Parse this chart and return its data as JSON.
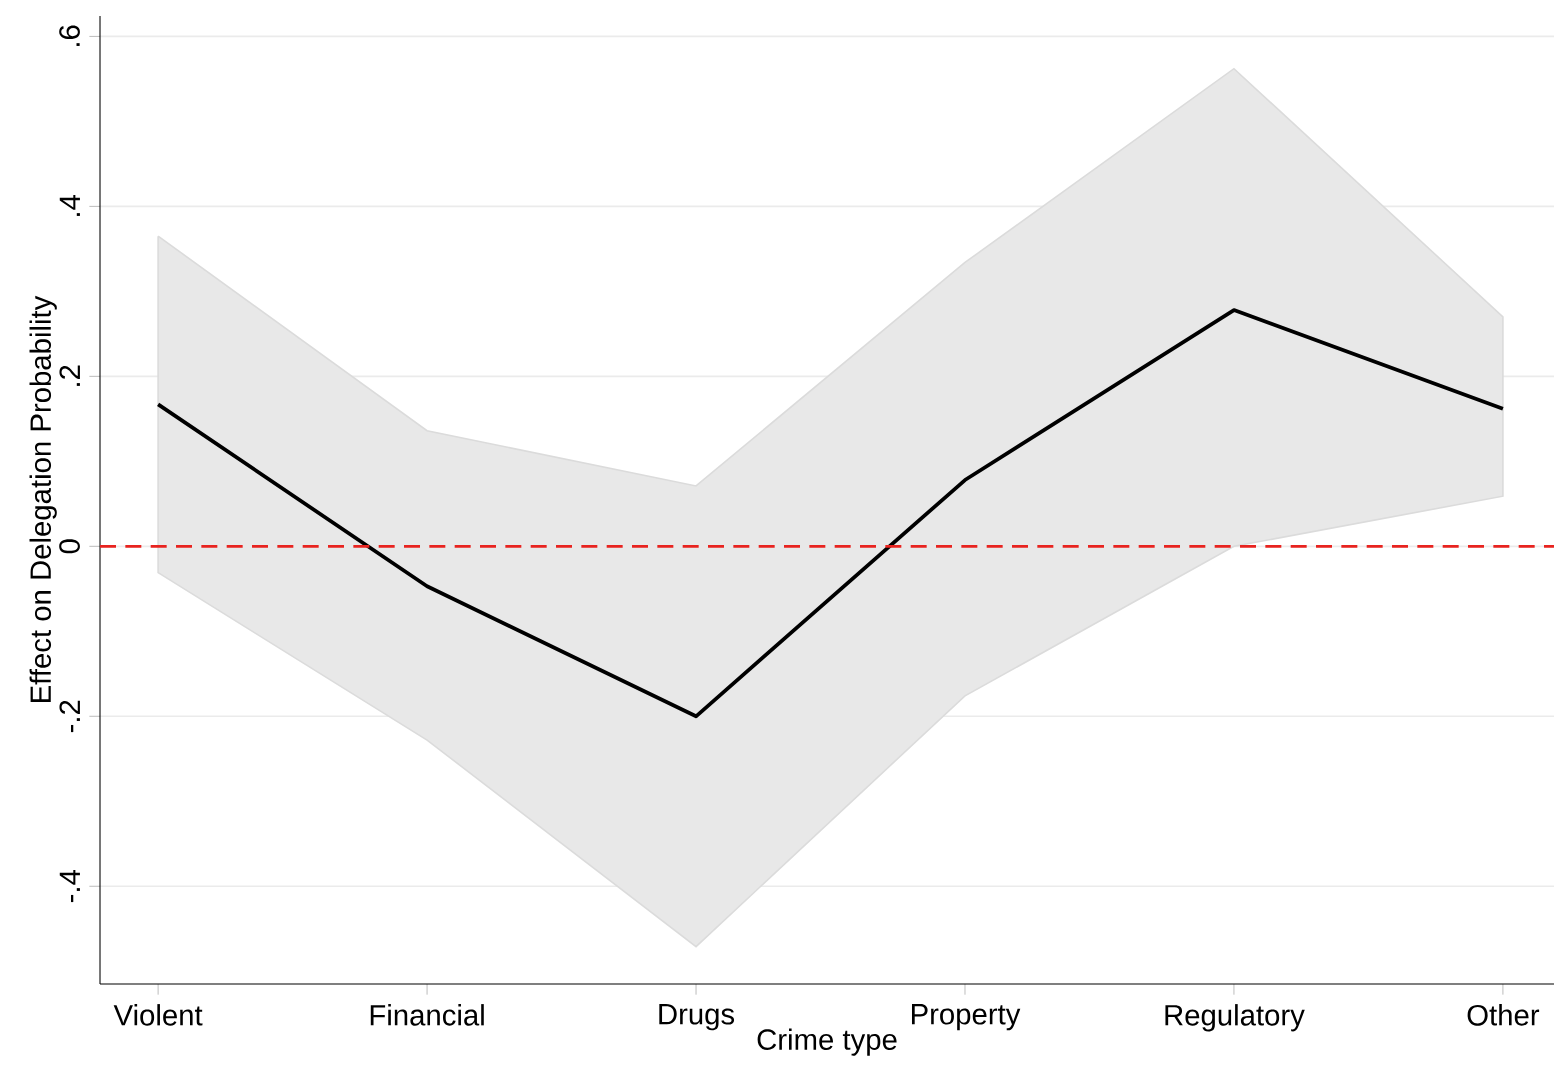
{
  "chart_data": {
    "type": "line",
    "xlabel": "Crime type",
    "ylabel": "Effect on Delegation Probability",
    "categories": [
      "Violent",
      "Financial",
      "Drugs",
      "Property",
      "Regulatory",
      "Other"
    ],
    "series": [
      {
        "color": "#000000",
        "values": [
          0.167,
          -0.047,
          -0.2,
          0.078,
          0.278,
          0.162
        ],
        "lower": [
          -0.031,
          -0.228,
          -0.471,
          -0.176,
          0.0,
          0.059
        ],
        "upper": [
          0.365,
          0.136,
          0.071,
          0.334,
          0.562,
          0.27
        ]
      }
    ],
    "ylim": [
      -0.515,
      0.624
    ],
    "yticks": [
      {
        "value": -0.4,
        "label": "-.4"
      },
      {
        "value": -0.2,
        "label": "-.2"
      },
      {
        "value": 0,
        "label": "0"
      },
      {
        "value": 0.2,
        "label": ".2"
      },
      {
        "value": 0.4,
        "label": ".4"
      },
      {
        "value": 0.6,
        "label": ".6"
      }
    ],
    "grid": "y",
    "ref_lines": [
      {
        "axis": "y",
        "value": 0,
        "color": "#e8231f",
        "line_style": "dashed"
      }
    ]
  }
}
